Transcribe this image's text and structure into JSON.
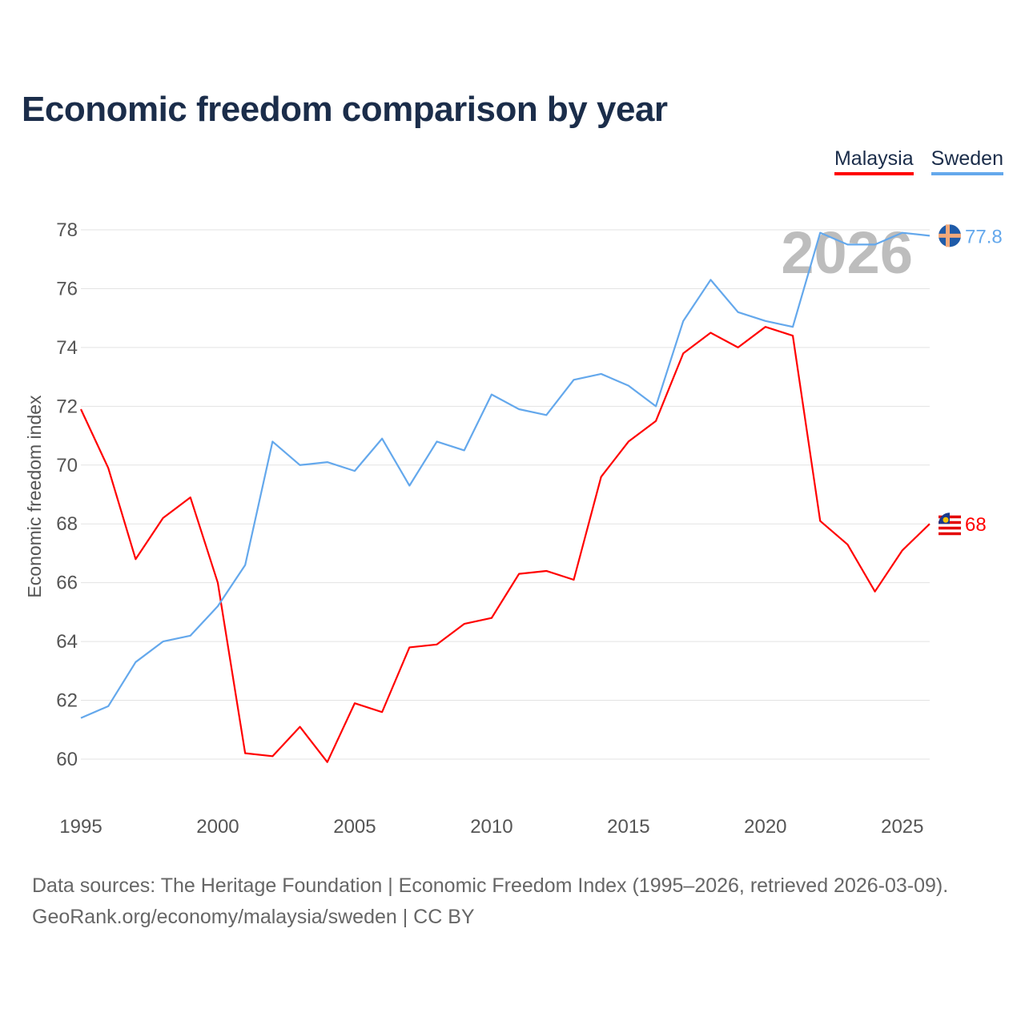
{
  "chart_data": {
    "type": "line",
    "title": "Economic freedom comparison by year",
    "xlabel": "",
    "ylabel": "Economic freedom index",
    "xlim": [
      1995,
      2026
    ],
    "ylim": [
      60,
      78
    ],
    "yticks": [
      60,
      62,
      64,
      66,
      68,
      70,
      72,
      74,
      76,
      78
    ],
    "xticks": [
      1995,
      2000,
      2005,
      2010,
      2015,
      2020,
      2025
    ],
    "grid": true,
    "legend_position": "top-right",
    "watermark_year": "2026",
    "x": [
      1995,
      1996,
      1997,
      1998,
      1999,
      2000,
      2001,
      2002,
      2003,
      2004,
      2005,
      2006,
      2007,
      2008,
      2009,
      2010,
      2011,
      2012,
      2013,
      2014,
      2015,
      2016,
      2017,
      2018,
      2019,
      2020,
      2021,
      2022,
      2023,
      2024,
      2025,
      2026
    ],
    "series": [
      {
        "name": "Malaysia",
        "color": "#ff0000",
        "end_label": "68",
        "values": [
          71.9,
          69.9,
          66.8,
          68.2,
          68.9,
          66.0,
          60.2,
          60.1,
          61.1,
          59.9,
          61.9,
          61.6,
          63.8,
          63.9,
          64.6,
          64.8,
          66.3,
          66.4,
          66.1,
          69.6,
          70.8,
          71.5,
          73.8,
          74.5,
          74.0,
          74.7,
          74.4,
          68.1,
          67.3,
          65.7,
          67.1,
          68.0
        ]
      },
      {
        "name": "Sweden",
        "color": "#64a8ec",
        "end_label": "77.8",
        "values": [
          61.4,
          61.8,
          63.3,
          64.0,
          64.2,
          65.2,
          66.6,
          70.8,
          70.0,
          70.1,
          69.8,
          70.9,
          69.3,
          70.8,
          70.5,
          72.4,
          71.9,
          71.7,
          72.9,
          73.1,
          72.7,
          72.0,
          74.9,
          76.3,
          75.2,
          74.9,
          74.7,
          77.9,
          77.5,
          77.5,
          77.9,
          77.8
        ]
      }
    ]
  },
  "footer": {
    "line1": "Data sources: The Heritage Foundation | Economic Freedom Index (1995–2026, retrieved 2026-03-09).",
    "line2": "GeoRank.org/economy/malaysia/sweden | CC BY"
  }
}
